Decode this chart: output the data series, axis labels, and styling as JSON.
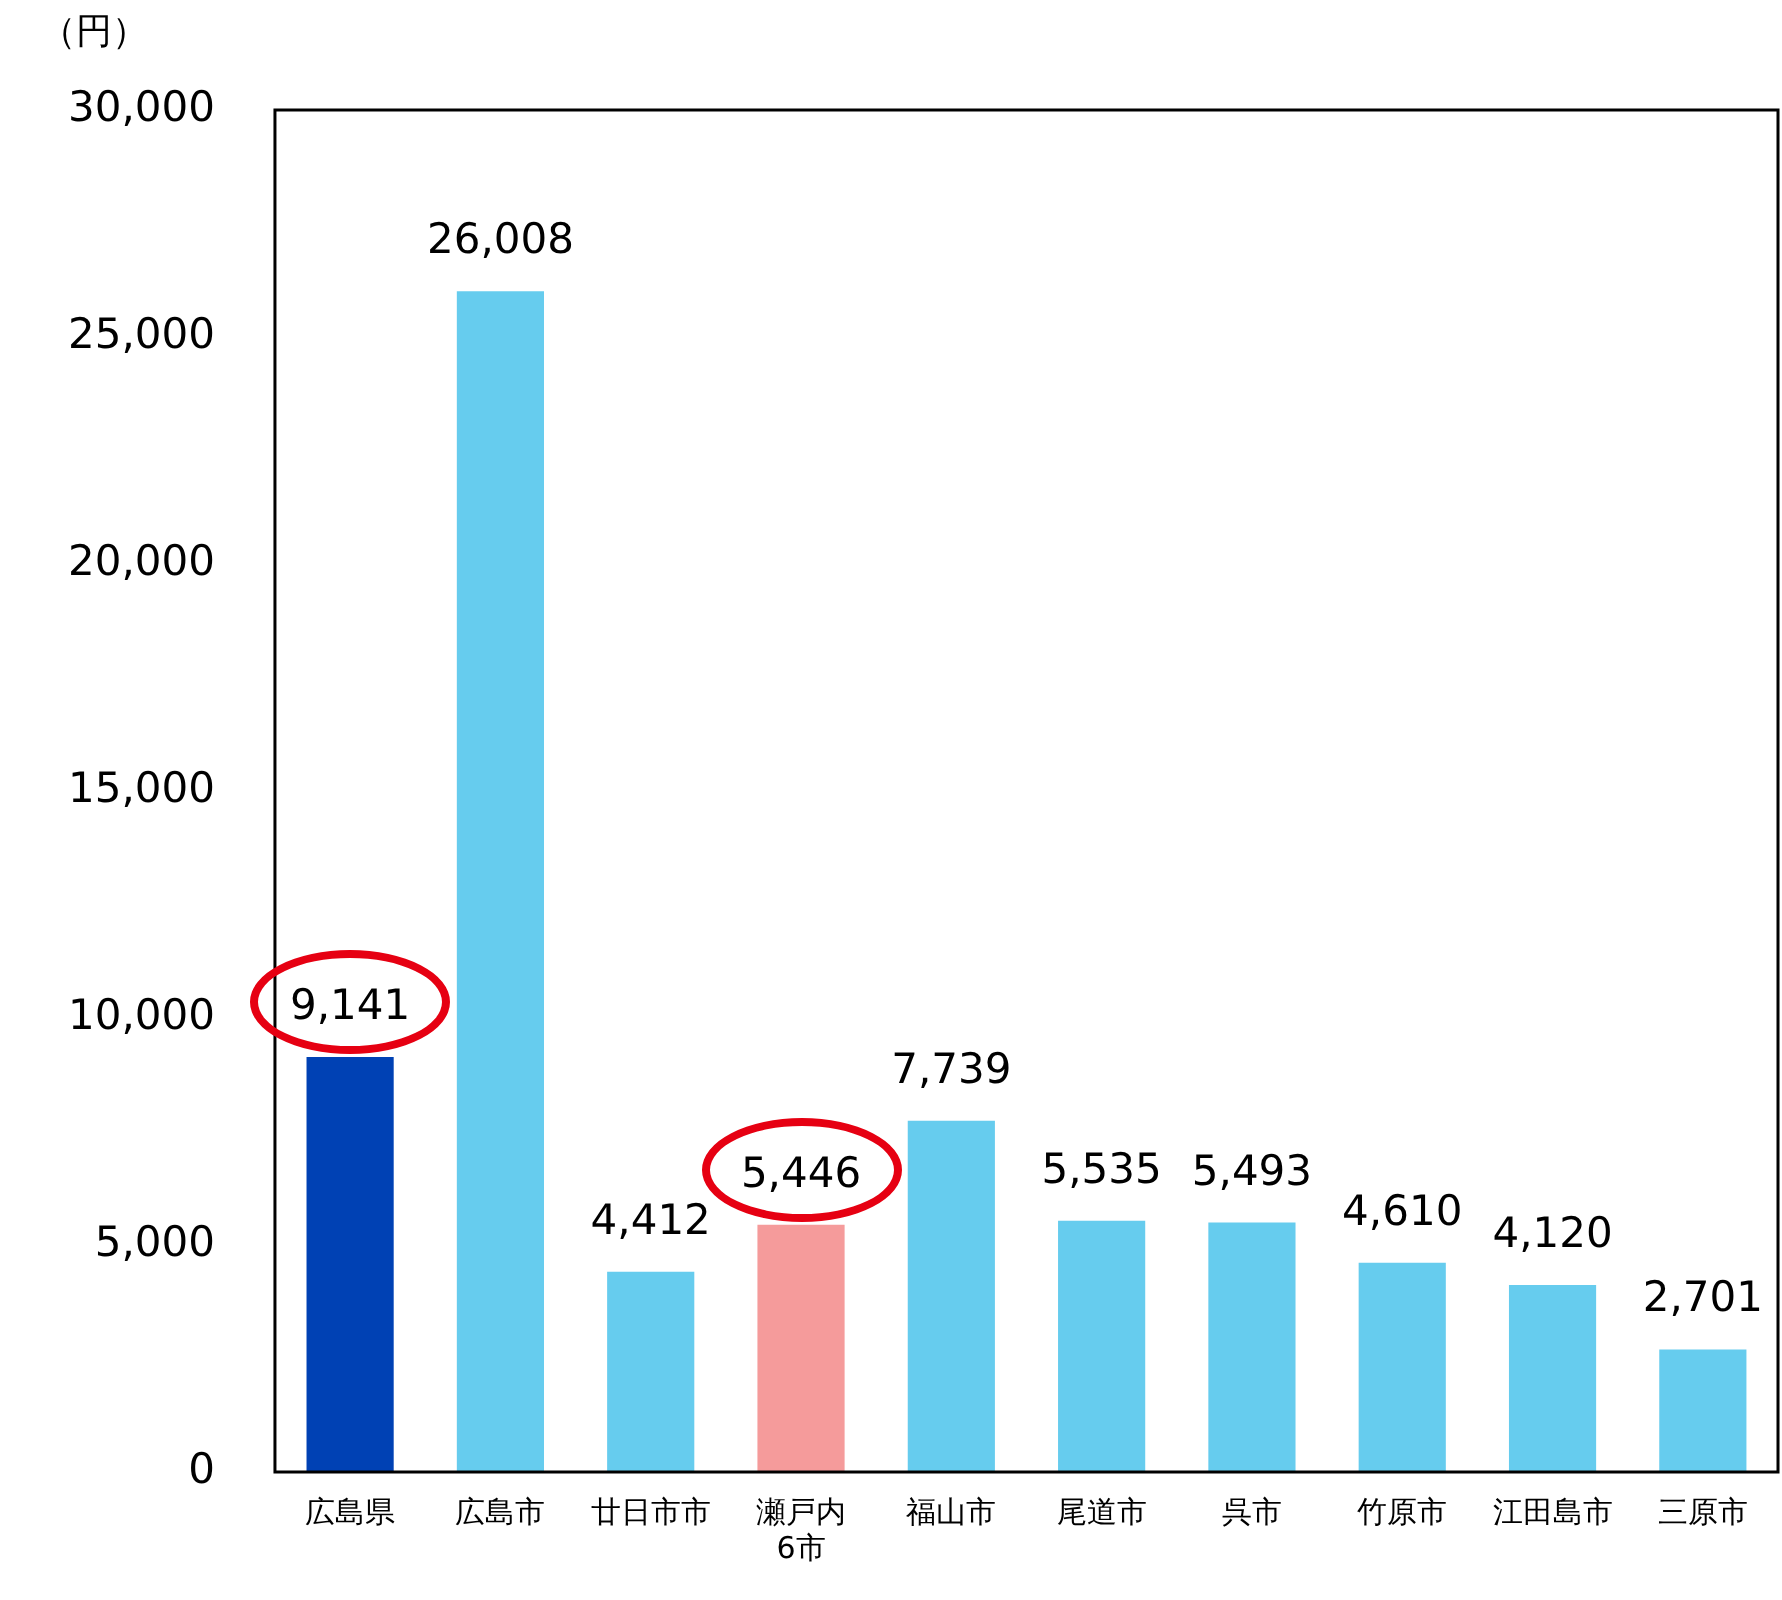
{
  "chart_data": {
    "type": "bar",
    "ylabel": "（円）",
    "categories": [
      "広島県",
      "広島市",
      "廿日市市",
      "瀬戸内\n6市",
      "福山市",
      "尾道市",
      "呉市",
      "竹原市",
      "江田島市",
      "三原市"
    ],
    "values": [
      9141,
      26008,
      4412,
      5446,
      7739,
      5535,
      5493,
      4610,
      4120,
      2701
    ],
    "colors": [
      "#0041b4",
      "#66ccee",
      "#66ccee",
      "#f59b9b",
      "#66ccee",
      "#66ccee",
      "#66ccee",
      "#66ccee",
      "#66ccee",
      "#66ccee"
    ],
    "value_labels": [
      "9,141",
      "26,008",
      "4,412",
      "5,446",
      "7,739",
      "5,535",
      "5,493",
      "4,610",
      "4,120",
      "2,701"
    ],
    "ylim": [
      0,
      30000
    ],
    "yticks": [
      0,
      {
        "value": 5000,
        "label": "5,000"
      },
      {
        "value": 10000,
        "label": "10,000"
      },
      {
        "value": 15000,
        "label": "15,000"
      },
      {
        "value": 20000,
        "label": "20,000"
      },
      {
        "value": 25000,
        "label": "25,000"
      },
      {
        "value": 30000,
        "label": "30,000"
      }
    ],
    "grid": false,
    "legend": false
  }
}
